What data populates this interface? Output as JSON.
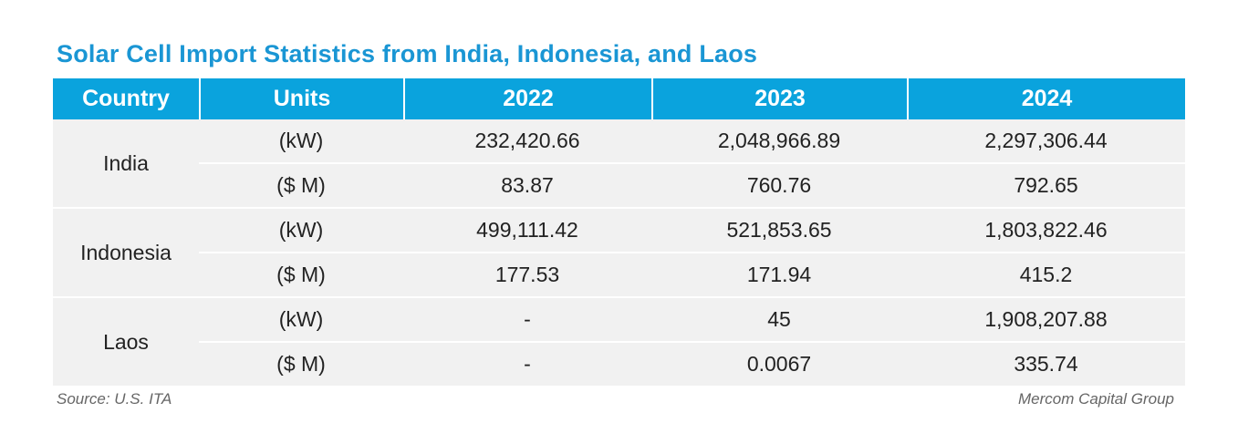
{
  "title": "Solar Cell Import Statistics from India, Indonesia, and Laos",
  "headers": [
    "Country",
    "Units",
    "2022",
    "2023",
    "2024"
  ],
  "rows": [
    {
      "country": "India",
      "kw": {
        "units": "(kW)",
        "y2022": "232,420.66",
        "y2023": "2,048,966.89",
        "y2024": "2,297,306.44"
      },
      "usd": {
        "units": "($ M)",
        "y2022": "83.87",
        "y2023": "760.76",
        "y2024": "792.65"
      }
    },
    {
      "country": "Indonesia",
      "kw": {
        "units": "(kW)",
        "y2022": "499,111.42",
        "y2023": "521,853.65",
        "y2024": "1,803,822.46"
      },
      "usd": {
        "units": "($ M)",
        "y2022": "177.53",
        "y2023": "171.94",
        "y2024": "415.2"
      }
    },
    {
      "country": "Laos",
      "kw": {
        "units": "(kW)",
        "y2022": "-",
        "y2023": "45",
        "y2024": "1,908,207.88"
      },
      "usd": {
        "units": "($ M)",
        "y2022": "-",
        "y2023": "0.0067",
        "y2024": "335.74"
      }
    }
  ],
  "footer": {
    "source": "Source: U.S. ITA",
    "credit": "Mercom Capital Group"
  },
  "colors": {
    "header_bg": "#0aa3dd",
    "title": "#1a96d4",
    "row_bg": "#f1f1f1"
  }
}
